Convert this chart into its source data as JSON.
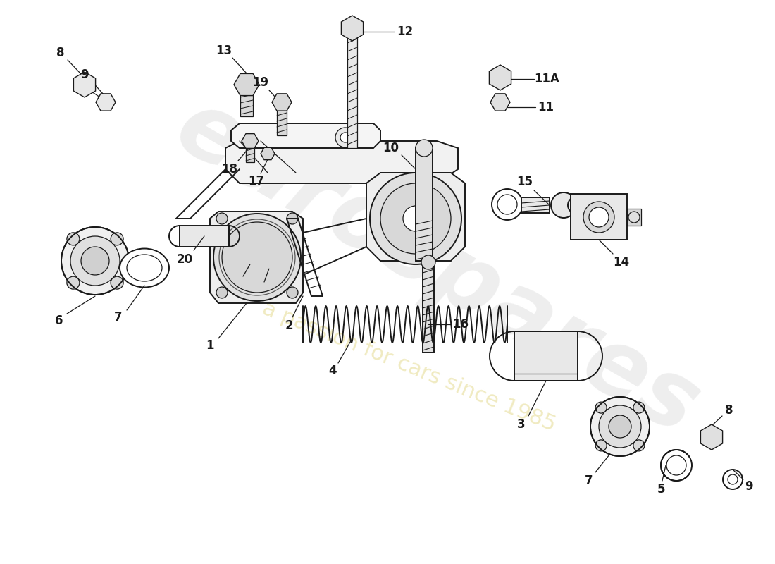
{
  "bg_color": "#ffffff",
  "line_color": "#1a1a1a",
  "lw_main": 1.4,
  "lw_thin": 0.9,
  "watermark_color": "#c8c8c8",
  "watermark_yellow": "#e8e0a0",
  "fig_w": 11.0,
  "fig_h": 8.0,
  "dpi": 100,
  "xlim": [
    0,
    1100
  ],
  "ylim": [
    0,
    800
  ],
  "parts": {
    "label_fs": 12,
    "label_fw": "bold"
  }
}
